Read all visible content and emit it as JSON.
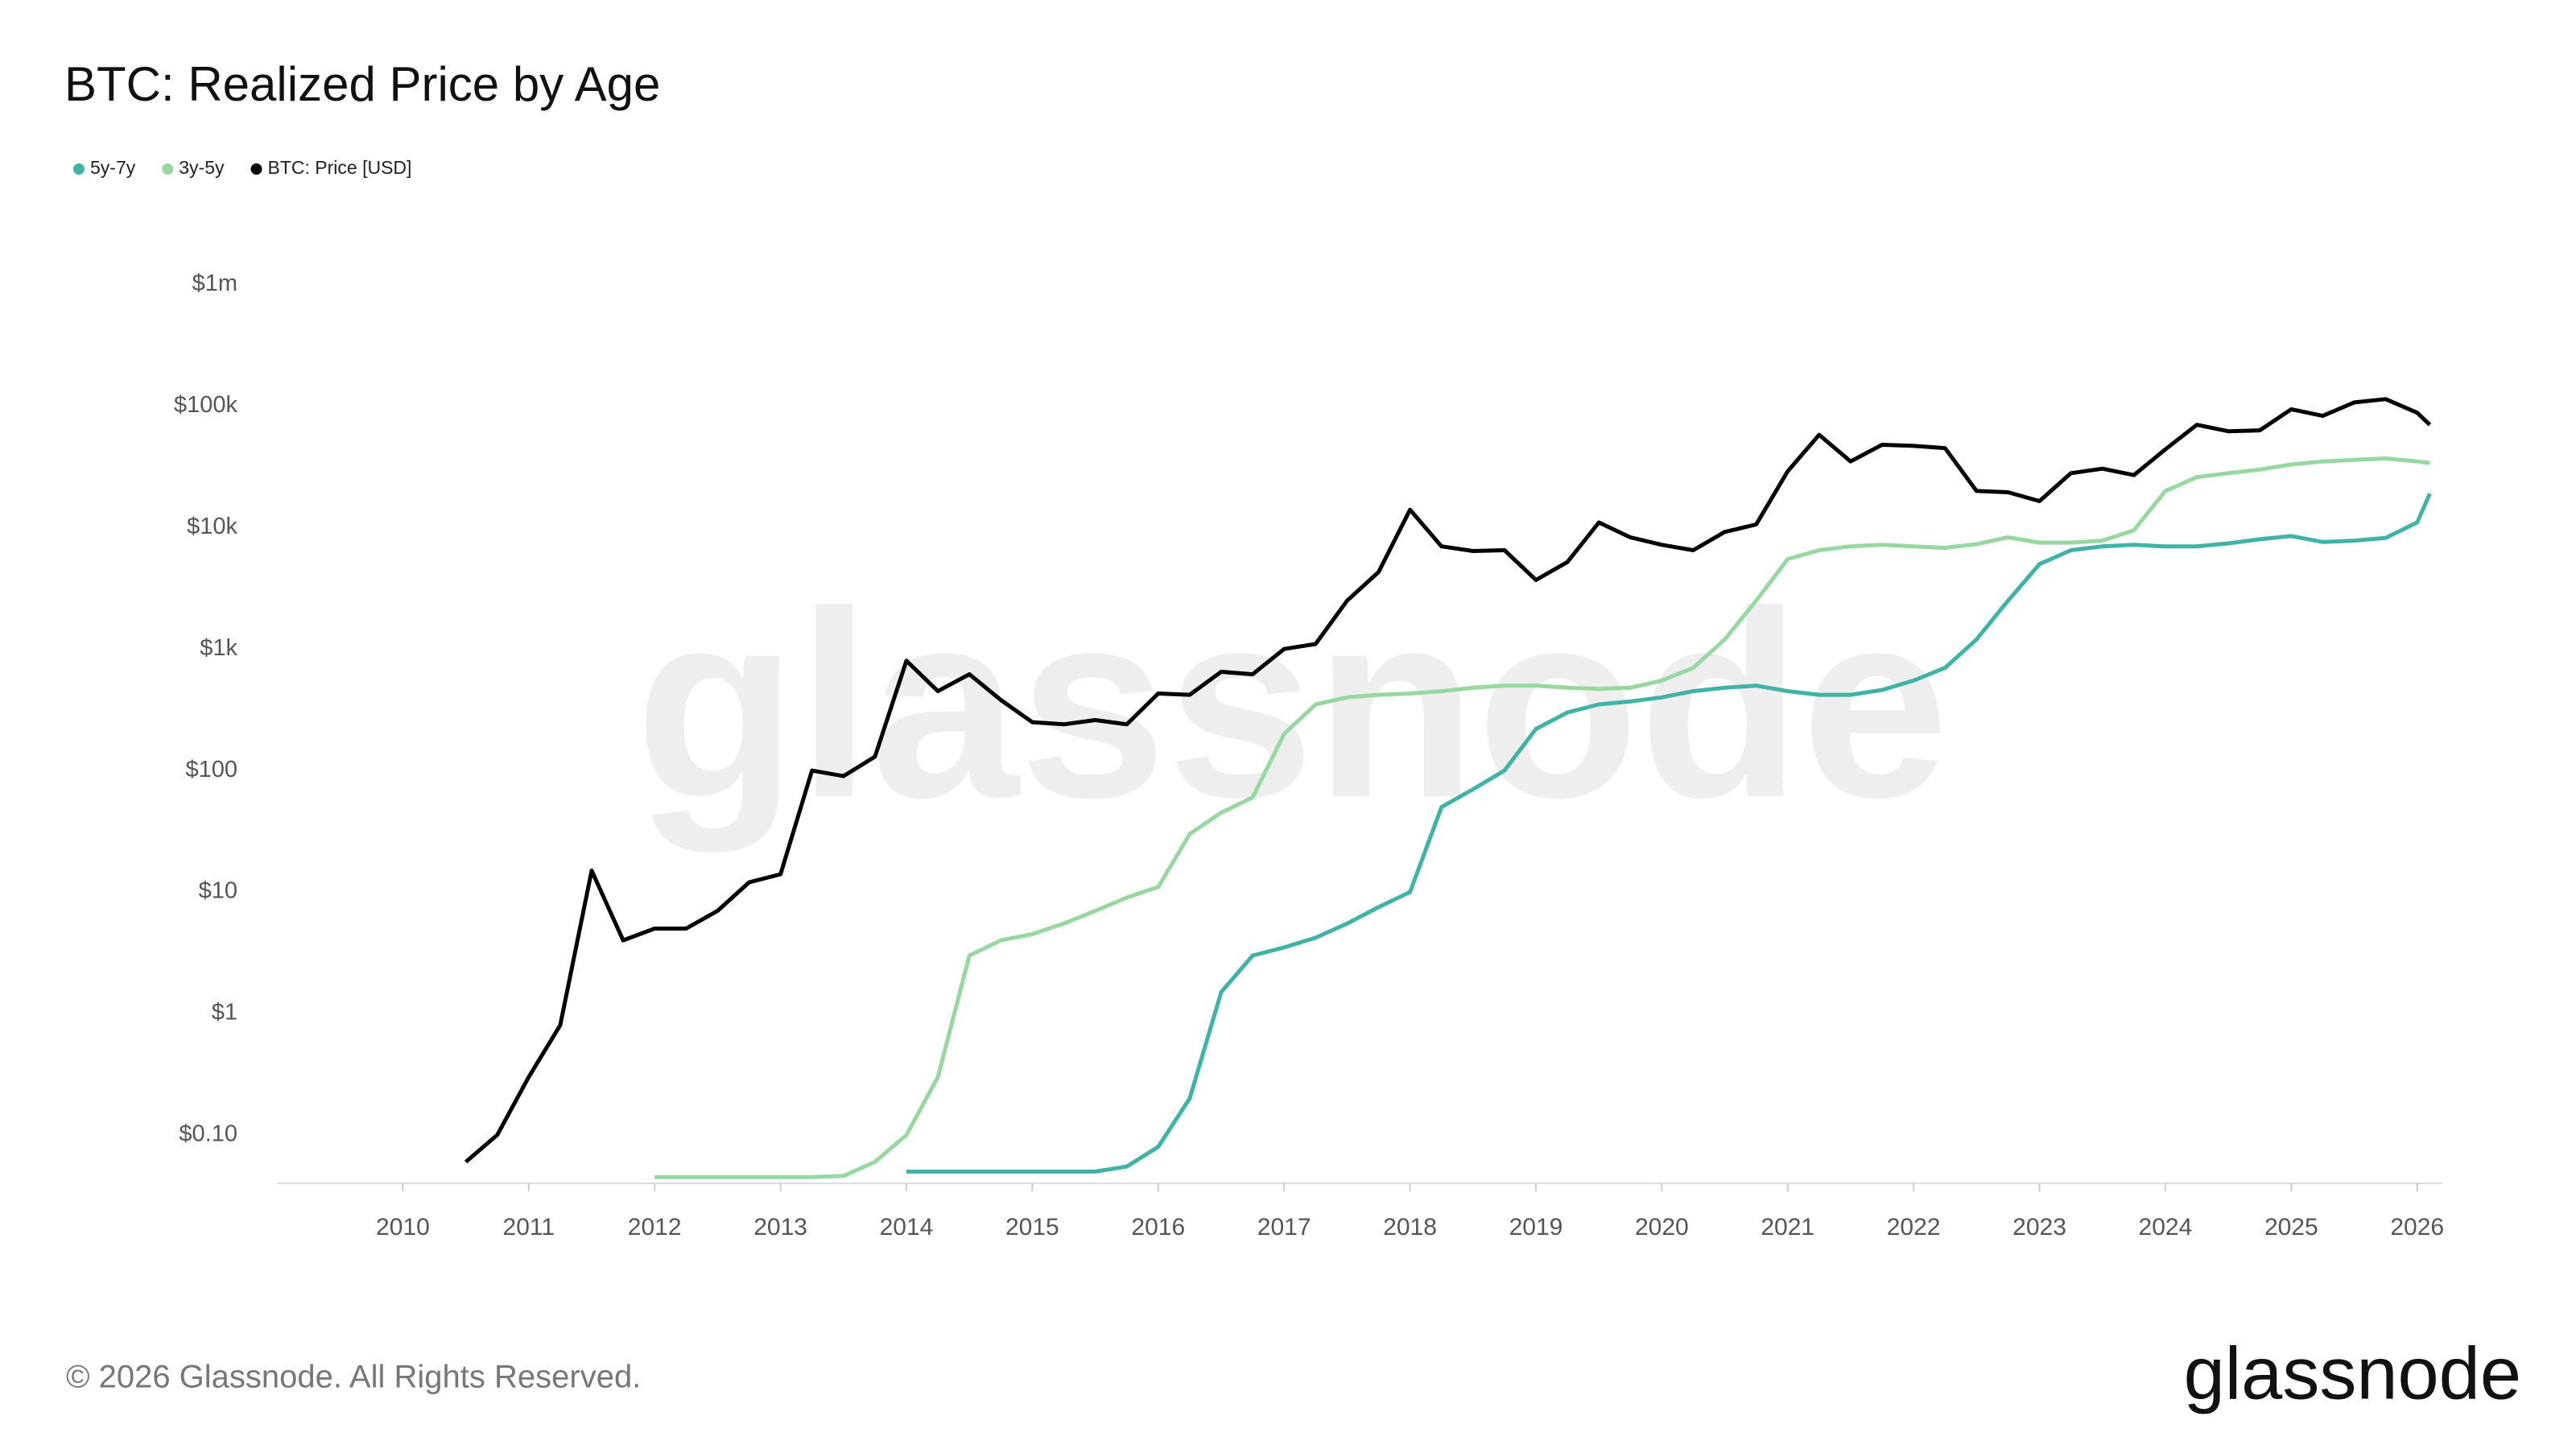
{
  "chart_data": {
    "type": "line",
    "title": "BTC: Realized Price by Age",
    "yscale": "log",
    "grid": false,
    "legend": "top-left",
    "watermark": "glassnode",
    "copyright": "© 2026 Glassnode. All Rights Reserved.",
    "logo": "glassnode",
    "xlim": [
      2009,
      2026.2
    ],
    "xticks": [
      2010,
      2011,
      2012,
      2013,
      2014,
      2015,
      2016,
      2017,
      2018,
      2019,
      2020,
      2021,
      2022,
      2023,
      2024,
      2025,
      2026
    ],
    "ylim": [
      0.04,
      2000000
    ],
    "yticks": [
      {
        "value": 0.1,
        "label": "$0.10"
      },
      {
        "value": 1,
        "label": "$1"
      },
      {
        "value": 10,
        "label": "$10"
      },
      {
        "value": 100,
        "label": "$100"
      },
      {
        "value": 1000,
        "label": "$1k"
      },
      {
        "value": 10000,
        "label": "$10k"
      },
      {
        "value": 100000,
        "label": "$100k"
      },
      {
        "value": 1000000,
        "label": "$1m"
      }
    ],
    "x": [
      2010.5,
      2010.75,
      2011,
      2011.25,
      2011.5,
      2011.75,
      2012,
      2012.25,
      2012.5,
      2012.75,
      2013,
      2013.25,
      2013.5,
      2013.75,
      2014,
      2014.25,
      2014.5,
      2014.75,
      2015,
      2015.25,
      2015.5,
      2015.75,
      2016,
      2016.25,
      2016.5,
      2016.75,
      2017,
      2017.25,
      2017.5,
      2017.75,
      2018,
      2018.25,
      2018.5,
      2018.75,
      2019,
      2019.25,
      2019.5,
      2019.75,
      2020,
      2020.25,
      2020.5,
      2020.75,
      2021,
      2021.25,
      2021.5,
      2021.75,
      2022,
      2022.25,
      2022.5,
      2022.75,
      2023,
      2023.25,
      2023.5,
      2023.75,
      2024,
      2024.25,
      2024.5,
      2024.75,
      2025,
      2025.25,
      2025.5,
      2025.75,
      2026,
      2026.1
    ],
    "series": [
      {
        "name": "5y-7y",
        "color": "#3fb3a5",
        "values": [
          null,
          null,
          null,
          null,
          null,
          null,
          null,
          null,
          null,
          null,
          null,
          null,
          null,
          null,
          0.05,
          0.05,
          0.05,
          0.05,
          0.05,
          0.05,
          0.05,
          0.055,
          0.08,
          0.2,
          1.5,
          3,
          3.5,
          4.2,
          5.5,
          7.5,
          10,
          50,
          70,
          100,
          220,
          300,
          350,
          370,
          400,
          450,
          480,
          500,
          450,
          420,
          420,
          460,
          550,
          700,
          1200,
          2500,
          5000,
          6500,
          7000,
          7200,
          7000,
          7000,
          7400,
          8000,
          8500,
          7600,
          7800,
          8200,
          11000,
          19000
        ]
      },
      {
        "name": "3y-5y",
        "color": "#97d7a0",
        "values": [
          null,
          null,
          null,
          null,
          null,
          null,
          0.045,
          0.045,
          0.045,
          0.045,
          0.045,
          0.045,
          0.046,
          0.06,
          0.1,
          0.3,
          3,
          4,
          4.5,
          5.5,
          7,
          9,
          11,
          30,
          45,
          60,
          200,
          350,
          400,
          420,
          430,
          450,
          480,
          500,
          500,
          480,
          470,
          480,
          550,
          700,
          1200,
          2500,
          5500,
          6500,
          7000,
          7200,
          7000,
          6800,
          7300,
          8300,
          7500,
          7500,
          7800,
          9500,
          20000,
          26000,
          28000,
          30000,
          33000,
          35000,
          36000,
          37000,
          35000,
          34000
        ]
      },
      {
        "name": "BTC: Price [USD]",
        "color": "#000000",
        "values": [
          0.06,
          0.1,
          0.3,
          0.8,
          15,
          4,
          5,
          5,
          7,
          12,
          14,
          100,
          90,
          130,
          800,
          450,
          620,
          380,
          250,
          240,
          260,
          240,
          430,
          420,
          650,
          620,
          1000,
          1100,
          2500,
          4300,
          14000,
          7000,
          6400,
          6500,
          3700,
          5200,
          11000,
          8300,
          7200,
          6500,
          9200,
          10600,
          29000,
          58000,
          35000,
          48000,
          47000,
          45000,
          20000,
          19500,
          16500,
          28000,
          30500,
          27000,
          44000,
          70000,
          62000,
          63000,
          94000,
          83000,
          107000,
          114000,
          88000,
          70000
        ]
      }
    ]
  }
}
